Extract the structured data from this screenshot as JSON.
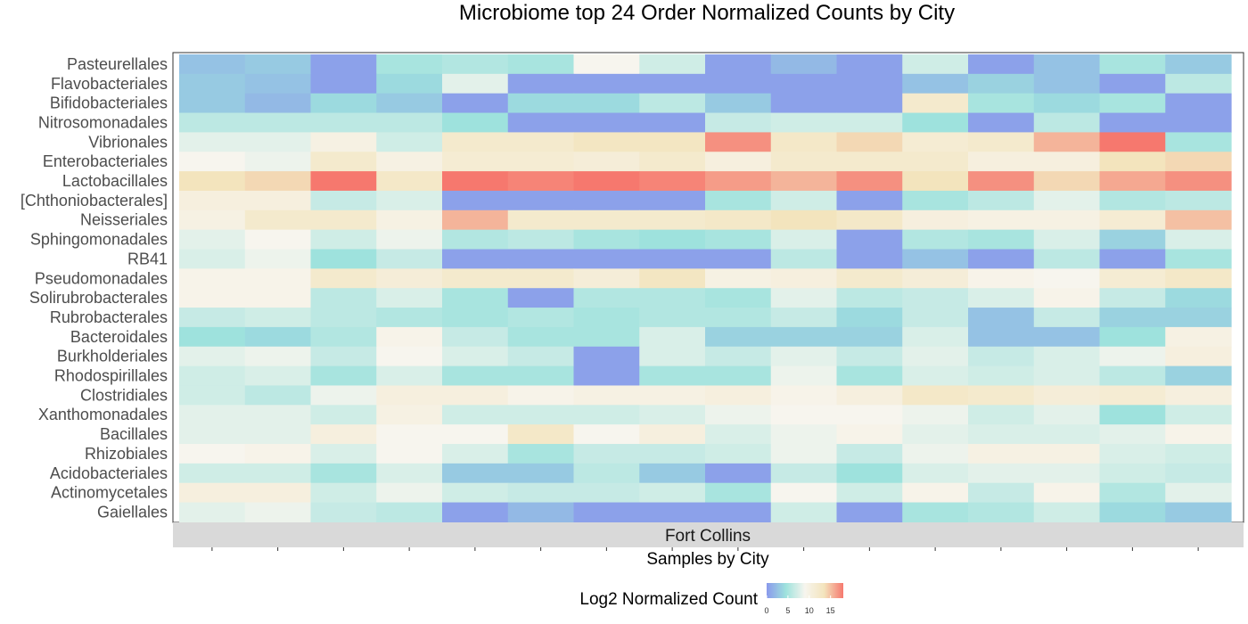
{
  "chart_data": {
    "type": "heatmap",
    "title": "Microbiome top 24 Order Normalized Counts by City",
    "xlabel": "Samples by City",
    "facet": "Fort Collins",
    "legend_title": "Log2 Normalized Count",
    "legend_ticks": [
      0,
      5,
      10,
      15
    ],
    "value_range": [
      0,
      18
    ],
    "columns": 16,
    "rows": [
      "Pasteurellales",
      "Flavobacteriales",
      "Bifidobacteriales",
      "Nitrosomonadales",
      "Vibrionales",
      "Enterobacteriales",
      "Lactobacillales",
      "[Chthoniobacterales]",
      "Neisseriales",
      "Sphingomonadales",
      "RB41",
      "Pseudomonadales",
      "Solirubrobacterales",
      "Rubrobacterales",
      "Bacteroidales",
      "Burkholderiales",
      "Rhodospirillales",
      "Clostridiales",
      "Xanthomonadales",
      "Bacillales",
      "Rhizobiales",
      "Acidobacteriales",
      "Actinomycetales",
      "Gaiellales"
    ],
    "values": [
      [
        2.5,
        3,
        0.5,
        5,
        5.5,
        5,
        9,
        7,
        0.5,
        2,
        0.5,
        7,
        0.5,
        2.5,
        5,
        3
      ],
      [
        3,
        2.5,
        0.5,
        4,
        8,
        0.5,
        0.5,
        0.5,
        0.5,
        0.5,
        0.5,
        2.5,
        3.5,
        2.5,
        0.5,
        6
      ],
      [
        3,
        2,
        4,
        3,
        0.5,
        4,
        4,
        6,
        3,
        0.5,
        0.5,
        12,
        5,
        4,
        5,
        0.5
      ],
      [
        6,
        6,
        6,
        6,
        4.5,
        0.5,
        0.5,
        0.5,
        6.5,
        7,
        7,
        4.5,
        0.5,
        6,
        0.5,
        0.5
      ],
      [
        8,
        8,
        10,
        7,
        12,
        12,
        13,
        13,
        17,
        12.5,
        14,
        11.5,
        12,
        15.5,
        18,
        5
      ],
      [
        9,
        8.5,
        12,
        10,
        11.5,
        11.5,
        11,
        12,
        10.5,
        12,
        12,
        12,
        10.5,
        10.5,
        13.5,
        14
      ],
      [
        13.5,
        14,
        18,
        12.5,
        18,
        17.5,
        18,
        17.5,
        16.5,
        15.5,
        17,
        13.5,
        17,
        14,
        16,
        17
      ],
      [
        10.5,
        10.5,
        6.5,
        7.5,
        0.5,
        0.5,
        0.5,
        0.5,
        5,
        7,
        0.5,
        5,
        6,
        8,
        5.5,
        6
      ],
      [
        10,
        12,
        12,
        10,
        15.5,
        12,
        12,
        12,
        12.5,
        13.5,
        12.5,
        10.5,
        10,
        10,
        11.5,
        15
      ],
      [
        8,
        9,
        7,
        8.5,
        5.5,
        6,
        5,
        4.5,
        5,
        7.5,
        0.5,
        5.5,
        5,
        7.5,
        3.5,
        7.5
      ],
      [
        7.5,
        8.5,
        4.5,
        6.5,
        0.5,
        0.5,
        0.5,
        0.5,
        0.5,
        6,
        0.5,
        2.5,
        0.5,
        6,
        0.5,
        5
      ],
      [
        9.5,
        9.5,
        12,
        11,
        12,
        12,
        11,
        13,
        10,
        10.5,
        12,
        11,
        9.5,
        9,
        11.5,
        12.5
      ],
      [
        9.5,
        9.5,
        6,
        7.5,
        5,
        0.5,
        5.5,
        5.5,
        5,
        8,
        6,
        6.5,
        7.5,
        9.5,
        6.5,
        4
      ],
      [
        6.5,
        7,
        6,
        5.5,
        5,
        5.5,
        5,
        5.5,
        5.5,
        6.5,
        4,
        6.5,
        2.5,
        6.5,
        3.5,
        3.5
      ],
      [
        4.5,
        4,
        5.5,
        9.5,
        6.5,
        5,
        5,
        7.5,
        3.5,
        3.5,
        3.5,
        7.5,
        2.5,
        2.5,
        4.5,
        10
      ],
      [
        8,
        8.5,
        6.5,
        9,
        7.5,
        6.5,
        0.5,
        7.5,
        6.5,
        8,
        6.5,
        8,
        6.5,
        7.5,
        8.5,
        10.5
      ],
      [
        7,
        7.5,
        5,
        7.5,
        5,
        5,
        0.5,
        5,
        5,
        8.5,
        5,
        7.5,
        7,
        7.5,
        6,
        3.5
      ],
      [
        7,
        6,
        8.5,
        10.5,
        10.5,
        9.5,
        10,
        10,
        10.5,
        9.5,
        10.5,
        12.5,
        12,
        11,
        11.5,
        10.5
      ],
      [
        8,
        8,
        7,
        10,
        7,
        7,
        7,
        7.5,
        8.5,
        9,
        9,
        8.5,
        7,
        8,
        4.5,
        7
      ],
      [
        8,
        8,
        10.5,
        9,
        9,
        12.5,
        9,
        10.5,
        7.5,
        8.5,
        9.5,
        8,
        7.5,
        7.5,
        8,
        9.5
      ],
      [
        9,
        9.5,
        7.5,
        9,
        7.5,
        5,
        6.5,
        6.5,
        7,
        8.5,
        6.5,
        8.5,
        10,
        10,
        7.5,
        7
      ],
      [
        7,
        7,
        5,
        7.5,
        3,
        3,
        6,
        3,
        0.5,
        6.5,
        4.5,
        7.5,
        8,
        8,
        7,
        6.5
      ],
      [
        10.5,
        10.5,
        7,
        8.5,
        7,
        6.5,
        6.5,
        7,
        5,
        9,
        7,
        9.5,
        6.5,
        9.5,
        5.5,
        8
      ],
      [
        8,
        8.5,
        6.5,
        6,
        0.5,
        2,
        0.5,
        0.5,
        0.5,
        7,
        0.5,
        5,
        5.5,
        7,
        4,
        3
      ]
    ],
    "colorscale": [
      "#8a99ec",
      "#9ee2dd",
      "#f7f5ee",
      "#f3e4bd",
      "#f6786e"
    ]
  }
}
